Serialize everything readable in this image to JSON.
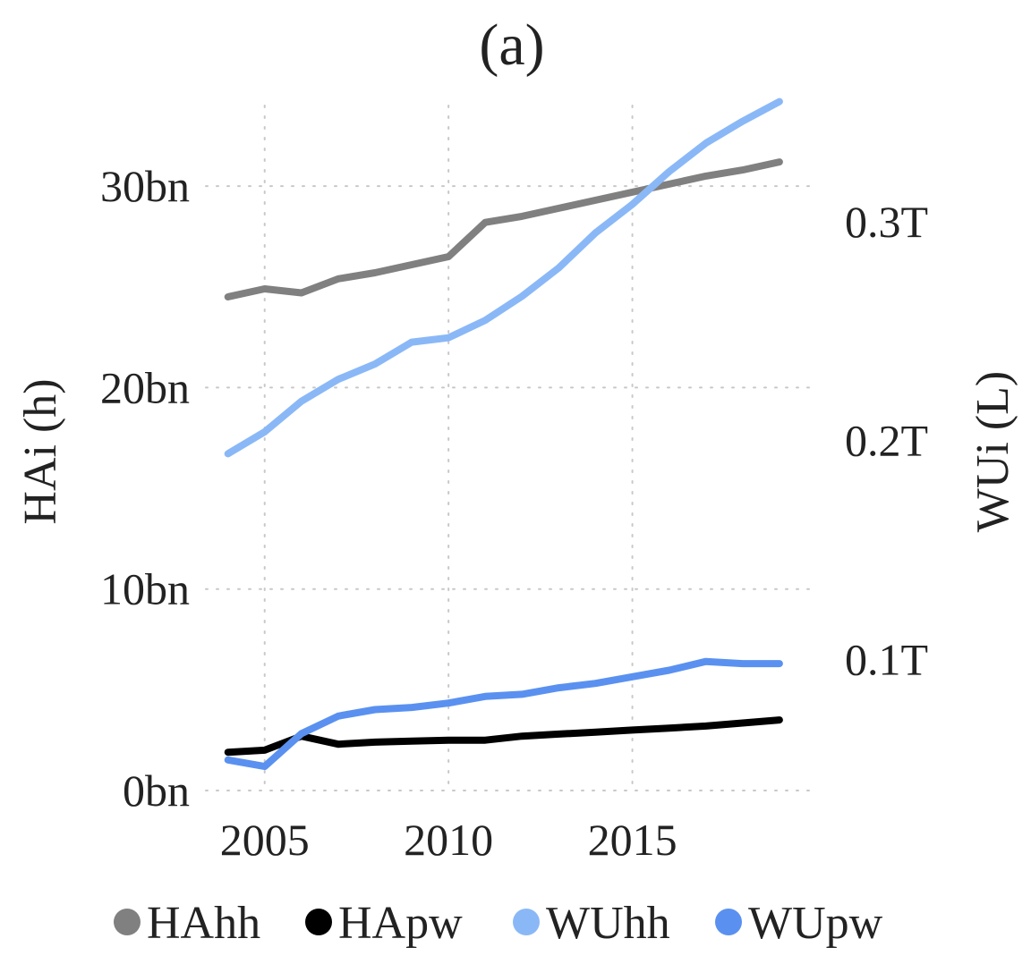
{
  "chart_data": {
    "type": "line",
    "title": "(a)",
    "xlabel": "",
    "ylabel": "HAi (h)",
    "y2label": "WUi (L)",
    "x": [
      2004,
      2005,
      2006,
      2007,
      2008,
      2009,
      2010,
      2011,
      2012,
      2013,
      2014,
      2015,
      2016,
      2017,
      2018,
      2019
    ],
    "xticks": [
      2005,
      2010,
      2015
    ],
    "xtick_labels": [
      "2005",
      "2010",
      "2015"
    ],
    "xlim": [
      2003.4,
      2020.0
    ],
    "ylim": [
      0,
      34
    ],
    "yticks": [
      0,
      10,
      20,
      30
    ],
    "ytick_labels": [
      "0bn",
      "10bn",
      "20bn",
      "30bn"
    ],
    "y2lim": [
      0.04,
      0.3532
    ],
    "y2ticks": [
      0.1,
      0.2,
      0.3
    ],
    "y2tick_labels": [
      "0.1T",
      "0.2T",
      "0.3T"
    ],
    "grid": true,
    "legend_position": "bottom",
    "series": [
      {
        "name": "HAhh",
        "axis": "left",
        "color": "#808080",
        "values": [
          24.5,
          24.9,
          24.7,
          25.4,
          25.7,
          26.1,
          26.5,
          28.2,
          28.5,
          28.9,
          29.3,
          29.7,
          30.1,
          30.5,
          30.8,
          31.2
        ]
      },
      {
        "name": "HApw",
        "axis": "left",
        "color": "#000000",
        "values": [
          1.9,
          2.0,
          2.7,
          2.3,
          2.4,
          2.45,
          2.5,
          2.5,
          2.7,
          2.8,
          2.9,
          3.0,
          3.1,
          3.2,
          3.35,
          3.5
        ]
      },
      {
        "name": "WUhh",
        "axis": "right",
        "color": "#8ab8f7",
        "values": [
          0.194,
          0.204,
          0.218,
          0.228,
          0.235,
          0.245,
          0.247,
          0.255,
          0.266,
          0.279,
          0.295,
          0.308,
          0.323,
          0.336,
          0.346,
          0.355
        ]
      },
      {
        "name": "WUpw",
        "axis": "right",
        "color": "#5a91f0",
        "values": [
          0.054,
          0.051,
          0.066,
          0.074,
          0.077,
          0.078,
          0.08,
          0.083,
          0.084,
          0.087,
          0.089,
          0.092,
          0.095,
          0.099,
          0.098,
          0.098
        ]
      }
    ]
  }
}
